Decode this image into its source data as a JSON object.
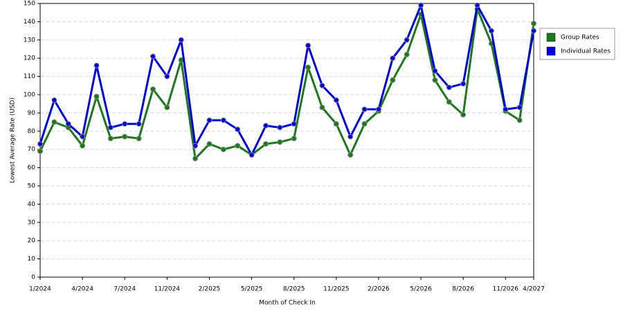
{
  "chart_data": {
    "type": "line",
    "x_label": "Month of Check In",
    "y_label": "Lowest Average Rate (USD)",
    "categories": [
      "1/2024",
      null,
      null,
      "4/2024",
      null,
      null,
      "7/2024",
      null,
      null,
      "11/2024",
      null,
      null,
      "2/2025",
      null,
      null,
      "5/2025",
      null,
      null,
      "8/2025",
      null,
      null,
      "11/2025",
      null,
      null,
      "2/2026",
      null,
      null,
      "5/2026",
      null,
      null,
      "8/2026",
      null,
      null,
      "11/2026",
      null,
      "4/2027"
    ],
    "series": [
      {
        "name": "Group Rates",
        "color": "#1a7a1a",
        "values": [
          69,
          85,
          82,
          72,
          99,
          76,
          77,
          76,
          103,
          93,
          119,
          65,
          73,
          70,
          72,
          67,
          73,
          74,
          76,
          115,
          93,
          84,
          67,
          84,
          91,
          108,
          122,
          144,
          108,
          96,
          89,
          147,
          128,
          91,
          86,
          139
        ]
      },
      {
        "name": "Individual Rates",
        "color": "#0000e0",
        "values": [
          73,
          97,
          84,
          77,
          116,
          82,
          84,
          84,
          121,
          110,
          130,
          72,
          86,
          86,
          81,
          67,
          83,
          82,
          84,
          127,
          105,
          97,
          77,
          92,
          92,
          120,
          130,
          149,
          113,
          104,
          106,
          149,
          135,
          92,
          93,
          135
        ]
      }
    ],
    "ylim": [
      0,
      150
    ],
    "yticks": [
      0,
      10,
      20,
      30,
      40,
      50,
      60,
      70,
      80,
      90,
      100,
      110,
      120,
      130,
      140,
      150
    ],
    "grid": true,
    "legend": "right"
  }
}
